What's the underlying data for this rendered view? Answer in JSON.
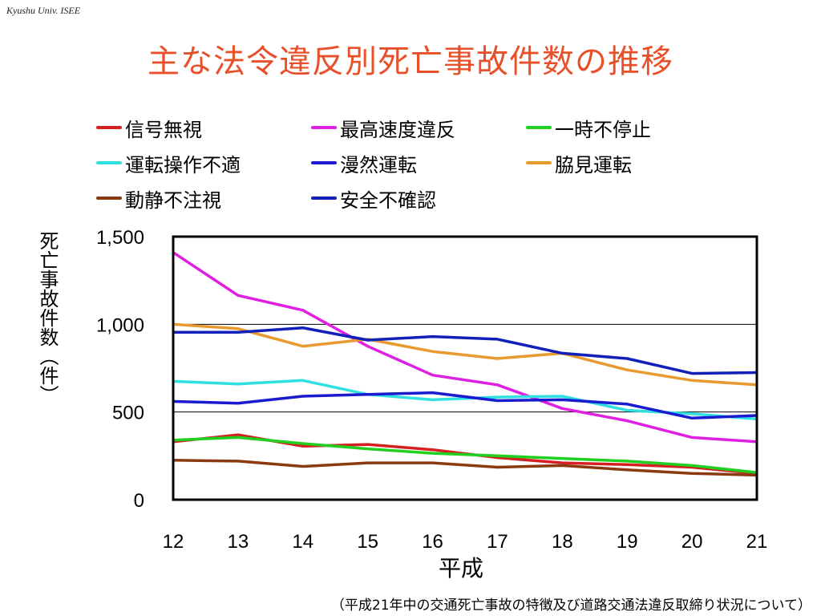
{
  "header_note": "Kyushu Univ. ISEE",
  "title": "主な法令違反別死亡事故件数の推移",
  "source_note": "（平成21年中の交通死亡事故の特徴及び道路交通法違反取締り状況について）",
  "chart_data": {
    "type": "line",
    "xlabel": "平成",
    "ylabel": "死亡事故件数（件）",
    "x": [
      12,
      13,
      14,
      15,
      16,
      17,
      18,
      19,
      20,
      21
    ],
    "ylim": [
      0,
      1500
    ],
    "y_ticks": [
      "0",
      "500",
      "1,000",
      "1,500"
    ],
    "x_ticks": [
      "12",
      "13",
      "14",
      "15",
      "16",
      "17",
      "18",
      "19",
      "20",
      "21"
    ],
    "grid": "horizontal",
    "legend_position": "top",
    "series": [
      {
        "name": "信号無視",
        "color": "#d42020",
        "values": [
          330,
          370,
          305,
          315,
          285,
          240,
          210,
          200,
          185,
          150
        ]
      },
      {
        "name": "最高速度違反",
        "color": "#e020e0",
        "values": [
          1410,
          1165,
          1080,
          875,
          710,
          655,
          520,
          450,
          355,
          330
        ]
      },
      {
        "name": "一時不停止",
        "color": "#20d020",
        "values": [
          340,
          355,
          320,
          290,
          265,
          250,
          235,
          220,
          195,
          155
        ]
      },
      {
        "name": "運転操作不適",
        "color": "#30e0e0",
        "values": [
          675,
          660,
          680,
          600,
          570,
          585,
          590,
          510,
          490,
          460
        ]
      },
      {
        "name": "漫然運転",
        "color": "#1a1ad0",
        "values": [
          560,
          550,
          590,
          600,
          610,
          565,
          570,
          545,
          465,
          480
        ]
      },
      {
        "name": "脇見運転",
        "color": "#e89a30",
        "values": [
          1000,
          975,
          875,
          915,
          845,
          805,
          835,
          740,
          680,
          655
        ]
      },
      {
        "name": "動静不注視",
        "color": "#8b3a10",
        "values": [
          225,
          220,
          190,
          210,
          210,
          185,
          195,
          170,
          150,
          140
        ]
      },
      {
        "name": "安全不確認",
        "color": "#1020b8",
        "values": [
          955,
          955,
          980,
          910,
          930,
          915,
          835,
          805,
          720,
          725
        ]
      }
    ]
  }
}
